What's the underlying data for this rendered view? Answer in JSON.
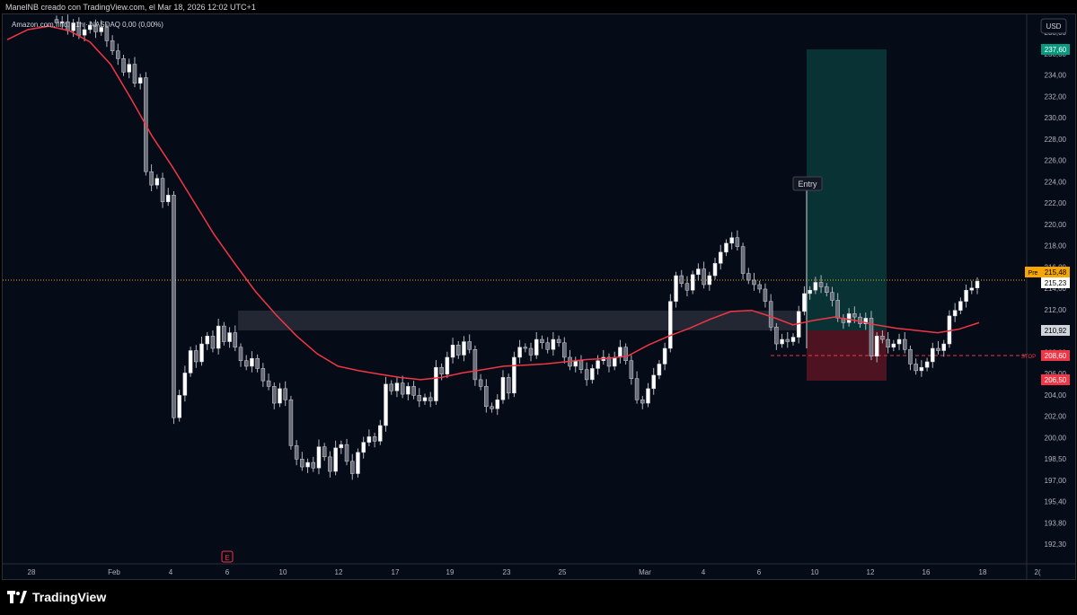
{
  "header": {
    "author_line": "ManelNB creado con TradingView.com, el Mar 18, 2026 12:02 UTC+1"
  },
  "chart": {
    "legend": "Amazon.com, Inc. · 1h · NASDAQ  0,00 (0,00%)",
    "currency_button": "USD",
    "entry_label": "Entry",
    "stop_label": "STOP",
    "earnings_marker": "E",
    "pre_label": "Pre",
    "price_tags": {
      "target": "237,60",
      "pre": "215,48",
      "last": "215,23",
      "zone": "210,92",
      "stop": "208,60",
      "stop_zone_low": "206,50"
    }
  },
  "brand": {
    "name": "TradingView"
  },
  "colors": {
    "background": "#050b17",
    "candle": "#d1d4dc",
    "ma_line": "#f23645",
    "target_zone": "#0a3a3a",
    "stop_zone": "#5a1522",
    "zone_band": "#3a3f4b",
    "price_line": "#f7a600",
    "target_tag": "#089981",
    "stop_tag": "#f23645"
  },
  "chart_data": {
    "type": "candlestick",
    "symbol": "Amazon.com, Inc.",
    "exchange": "NASDAQ",
    "interval": "1h",
    "x_tick_labels": [
      "28",
      "Feb",
      "4",
      "6",
      "10",
      "12",
      "17",
      "19",
      "23",
      "25",
      "Mar",
      "4",
      "6",
      "10",
      "12",
      "16",
      "18",
      "2("
    ],
    "y_tick_labels": [
      "238,00",
      "236,00",
      "234,00",
      "232,00",
      "230,00",
      "228,00",
      "226,00",
      "224,00",
      "222,00",
      "220,00",
      "218,00",
      "216,00",
      "214,00",
      "212,00",
      "210,00",
      "208,00",
      "206,00",
      "204,00",
      "202,00",
      "200,00",
      "198,50",
      "197,00",
      "195,40",
      "193,80",
      "192,30"
    ],
    "ylim": [
      191.3,
      238.5
    ],
    "grid": false,
    "price_close_path": [
      238.3,
      238.4,
      237.6,
      238.3,
      237.2,
      237.7,
      238.1,
      237.5,
      237.9,
      236.7,
      235.8,
      235.1,
      233.9,
      234.6,
      232.9,
      233.4,
      225.0,
      223.8,
      224.4,
      222.3,
      222.9,
      203.0,
      205.0,
      207.0,
      209.0,
      208.0,
      209.6,
      210.3,
      209.2,
      211.2,
      209.8,
      210.6,
      209.3,
      208.1,
      207.6,
      208.3,
      207.4,
      206.3,
      205.8,
      204.3,
      205.6,
      204.6,
      200.5,
      199.3,
      198.6,
      199.0,
      198.5,
      200.4,
      199.5,
      198.2,
      200.3,
      200.6,
      199.1,
      198.0,
      199.9,
      200.8,
      201.3,
      200.9,
      202.3,
      206.0,
      205.4,
      206.1,
      205.1,
      205.8,
      205.0,
      204.5,
      204.8,
      204.5,
      207.5,
      206.9,
      208.4,
      209.5,
      208.6,
      209.8,
      209.1,
      206.4,
      205.8,
      204.0,
      203.8,
      204.6,
      206.6,
      205.2,
      208.4,
      209.3,
      209.2,
      208.6,
      210.0,
      209.7,
      209.1,
      210.0,
      209.7,
      208.4,
      207.6,
      208.1,
      207.3,
      206.4,
      207.4,
      208.1,
      208.4,
      207.6,
      208.4,
      209.3,
      208.1,
      206.5,
      204.6,
      204.3,
      205.6,
      206.8,
      207.8,
      209.2,
      213.4,
      215.7,
      215.0,
      214.4,
      215.8,
      216.3,
      214.9,
      215.7,
      216.8,
      217.8,
      218.6,
      219.1,
      218.3,
      215.9,
      215.3,
      214.9,
      214.5,
      213.4,
      211.1,
      209.6,
      210.0,
      209.8,
      210.2,
      212.5,
      214.1,
      214.4,
      215.1,
      214.7,
      214.2,
      213.5,
      211.9,
      211.5,
      212.3,
      212.0,
      211.4,
      211.9,
      208.5,
      210.3,
      210.0,
      209.3,
      209.6,
      210.0,
      209.1,
      207.8,
      207.2,
      207.5,
      208.0,
      209.2,
      209.0,
      209.6,
      212.1,
      212.6,
      213.4,
      214.4,
      214.6,
      215.2
    ],
    "moving_average": {
      "color": "#f23645",
      "values": [
        236.8,
        237.7,
        238.0,
        237.6,
        236.6,
        234.6,
        231.5,
        228.2,
        225.4,
        222.4,
        219.4,
        216.8,
        214.3,
        212.2,
        210.3,
        208.7,
        207.6,
        207.2,
        206.9,
        206.6,
        206.4,
        206.6,
        207.0,
        207.3,
        207.6,
        207.7,
        207.8,
        208.0,
        208.2,
        208.3,
        208.5,
        209.5,
        210.3,
        211.0,
        211.8,
        212.5,
        212.6,
        212.0,
        211.3,
        211.7,
        212.0,
        211.7,
        211.3,
        211.0,
        210.8,
        210.6,
        210.9,
        211.5
      ]
    },
    "trade_setup": {
      "entry": 210.92,
      "target": 237.6,
      "stop": 208.6,
      "stop_zone_low": 206.5
    },
    "resistance_zone": [
      210.92,
      212.6
    ],
    "last_price": 215.23,
    "pre_market_price": 215.48
  }
}
